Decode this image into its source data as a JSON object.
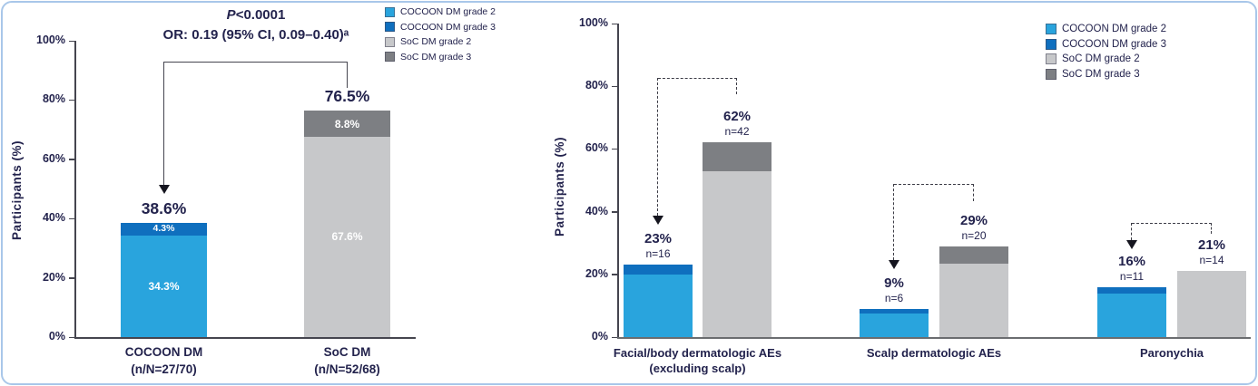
{
  "colors": {
    "cocoon_grade2": "#29a4dd",
    "cocoon_grade3": "#0f6fbe",
    "soc_grade2": "#c7c8ca",
    "soc_grade3": "#7d7f83",
    "text": "#23234d",
    "axis": "#45454f",
    "bracket": "#45454f",
    "frame_border": "#a9c7e9",
    "segment_label_white": "#ffffff"
  },
  "legend": {
    "items": [
      {
        "label": "COCOON DM grade 2",
        "color": "cocoon_grade2"
      },
      {
        "label": "COCOON DM grade 3",
        "color": "cocoon_grade3"
      },
      {
        "label": "SoC DM grade 2",
        "color": "soc_grade2"
      },
      {
        "label": "SoC DM grade 3",
        "color": "soc_grade3"
      }
    ]
  },
  "chart_data": [
    {
      "id": "dm-overall",
      "type": "bar",
      "stacked": true,
      "ylabel": "Participants (%)",
      "ylim": [
        0,
        100
      ],
      "yticks": [
        0,
        20,
        40,
        60,
        80,
        100
      ],
      "grid": false,
      "legend_position": "top-right",
      "annotation": {
        "p_prefix": "P",
        "p_rest": "<0.0001",
        "odds_ratio": "OR: 0.19 (95% CI, 0.09–0.40)ᵃ"
      },
      "bars": [
        {
          "category_lines": [
            "COCOON DM",
            "(n/N=27/70)"
          ],
          "n": 27,
          "N": 70,
          "total": 38.6,
          "total_label": "38.6%",
          "segments": [
            {
              "series": "COCOON DM grade 2",
              "value": 34.3,
              "label": "34.3%",
              "color": "cocoon_grade2"
            },
            {
              "series": "COCOON DM grade 3",
              "value": 4.3,
              "label": "4.3%",
              "color": "cocoon_grade3"
            }
          ]
        },
        {
          "category_lines": [
            "SoC DM",
            "(n/N=52/68)"
          ],
          "n": 52,
          "N": 68,
          "total": 76.5,
          "total_label": "76.5%",
          "segments": [
            {
              "series": "SoC DM grade 2",
              "value": 67.6,
              "label": "67.6%",
              "color": "soc_grade2"
            },
            {
              "series": "SoC DM grade 3",
              "value": 8.8,
              "label": "8.8%",
              "color": "soc_grade3"
            }
          ]
        }
      ]
    },
    {
      "id": "dermatologic-ae-categories",
      "type": "bar",
      "stacked": true,
      "grouped": true,
      "ylabel": "Participants (%)",
      "ylim": [
        0,
        100
      ],
      "yticks": [
        0,
        20,
        40,
        60,
        80,
        100
      ],
      "grid": false,
      "legend_position": "top-right",
      "groups": [
        {
          "category_lines": [
            "Facial/body dermatologic AEs",
            "(excluding scalp)"
          ],
          "bars": [
            {
              "series_group": "COCOON DM",
              "total": 23,
              "pct_label": "23%",
              "n": 16,
              "n_label": "n=16",
              "segments": [
                {
                  "series": "COCOON DM grade 2",
                  "value": 20,
                  "color": "cocoon_grade2"
                },
                {
                  "series": "COCOON DM grade 3",
                  "value": 3,
                  "color": "cocoon_grade3"
                }
              ]
            },
            {
              "series_group": "SoC DM",
              "total": 62,
              "pct_label": "62%",
              "n": 42,
              "n_label": "n=42",
              "segments": [
                {
                  "series": "SoC DM grade 2",
                  "value": 53,
                  "color": "soc_grade2"
                },
                {
                  "series": "SoC DM grade 3",
                  "value": 9,
                  "color": "soc_grade3"
                }
              ]
            }
          ]
        },
        {
          "category_lines": [
            "Scalp dermatologic AEs"
          ],
          "bars": [
            {
              "series_group": "COCOON DM",
              "total": 9,
              "pct_label": "9%",
              "n": 6,
              "n_label": "n=6",
              "segments": [
                {
                  "series": "COCOON DM grade 2",
                  "value": 7.5,
                  "color": "cocoon_grade2"
                },
                {
                  "series": "COCOON DM grade 3",
                  "value": 1.5,
                  "color": "cocoon_grade3"
                }
              ]
            },
            {
              "series_group": "SoC DM",
              "total": 29,
              "pct_label": "29%",
              "n": 20,
              "n_label": "n=20",
              "segments": [
                {
                  "series": "SoC DM grade 2",
                  "value": 23.5,
                  "color": "soc_grade2"
                },
                {
                  "series": "SoC DM grade 3",
                  "value": 5.5,
                  "color": "soc_grade3"
                }
              ]
            }
          ]
        },
        {
          "category_lines": [
            "Paronychia"
          ],
          "bars": [
            {
              "series_group": "COCOON DM",
              "total": 16,
              "pct_label": "16%",
              "n": 11,
              "n_label": "n=11",
              "segments": [
                {
                  "series": "COCOON DM grade 2",
                  "value": 14,
                  "color": "cocoon_grade2"
                },
                {
                  "series": "COCOON DM grade 3",
                  "value": 2,
                  "color": "cocoon_grade3"
                }
              ]
            },
            {
              "series_group": "SoC DM",
              "total": 21,
              "pct_label": "21%",
              "n": 14,
              "n_label": "n=14",
              "segments": [
                {
                  "series": "SoC DM grade 2",
                  "value": 21,
                  "color": "soc_grade2"
                }
              ]
            }
          ]
        }
      ]
    }
  ]
}
